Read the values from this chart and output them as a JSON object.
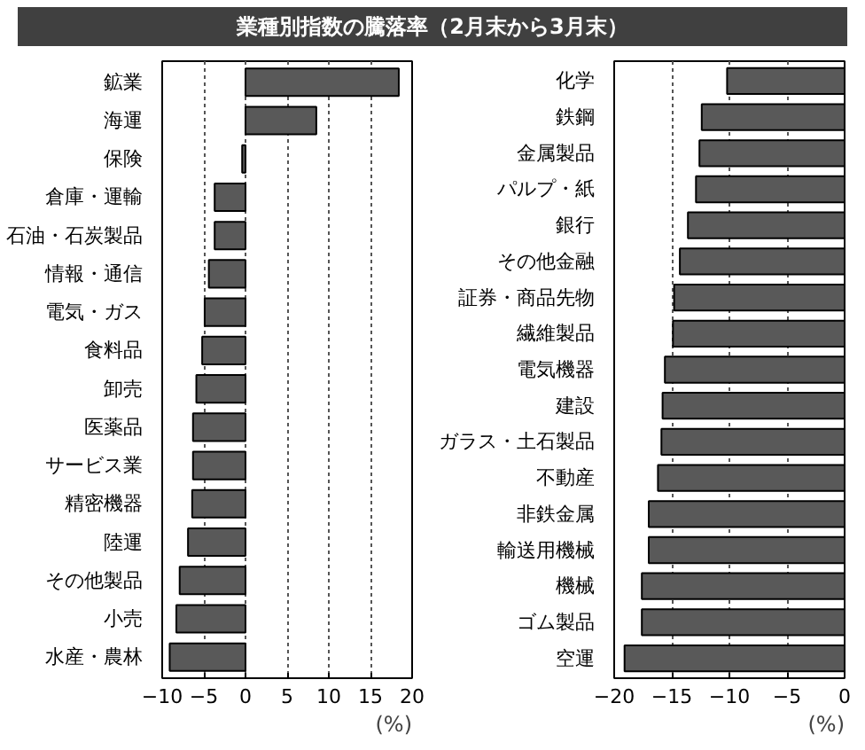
{
  "chart_data": [
    {
      "type": "bar",
      "orientation": "horizontal",
      "title": "業種別指数の騰落率（2月末から3月末）",
      "categories": [
        "鉱業",
        "海運",
        "保険",
        "倉庫・運輸",
        "石油・石炭製品",
        "情報・通信",
        "電気・ガス",
        "食料品",
        "卸売",
        "医薬品",
        "サービス業",
        "精密機器",
        "陸運",
        "その他製品",
        "小売",
        "水産・農林"
      ],
      "values": [
        18.4,
        8.5,
        -0.4,
        -3.7,
        -3.7,
        -4.4,
        -4.9,
        -5.2,
        -5.9,
        -6.3,
        -6.3,
        -6.4,
        -6.9,
        -7.9,
        -8.3,
        -9.1
      ],
      "color": "#595959",
      "xlim": [
        -10,
        20
      ],
      "xticks": [
        -10,
        -5,
        0,
        5,
        10,
        15,
        20
      ],
      "grid": "x",
      "annotations": [
        "(%)"
      ]
    },
    {
      "type": "bar",
      "orientation": "horizontal",
      "categories": [
        "化学",
        "鉄鋼",
        "金属製品",
        "パルプ・紙",
        "銀行",
        "その他金融",
        "証券・商品先物",
        "繊維製品",
        "電気機器",
        "建設",
        "ガラス・土石製品",
        "不動産",
        "非鉄金属",
        "輸送用機械",
        "機械",
        "ゴム製品",
        "空運"
      ],
      "values": [
        -10.2,
        -12.4,
        -12.6,
        -12.9,
        -13.6,
        -14.3,
        -14.8,
        -14.9,
        -15.6,
        -15.8,
        -15.9,
        -16.2,
        -17.0,
        -17.0,
        -17.6,
        -17.6,
        -19.1
      ],
      "color": "#595959",
      "xlim": [
        -20,
        0
      ],
      "xticks": [
        -20,
        -15,
        -10,
        -5,
        0
      ],
      "grid": "x",
      "annotations": [
        "(%)"
      ]
    }
  ]
}
